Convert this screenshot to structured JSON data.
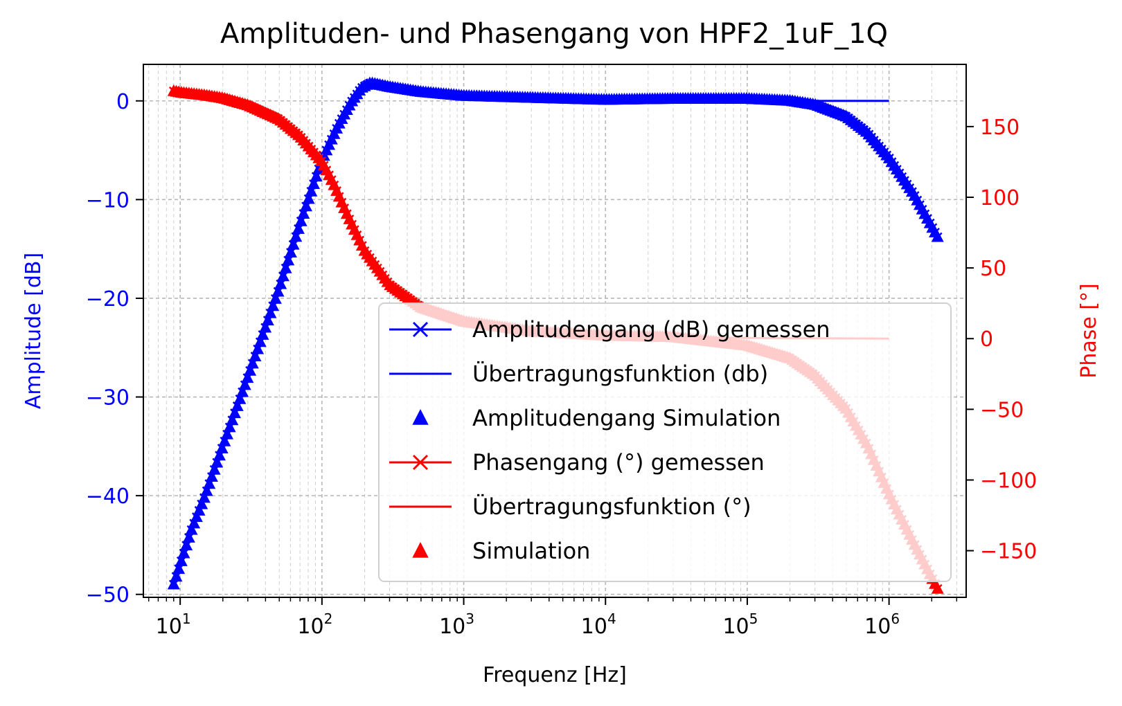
{
  "chart_data": {
    "type": "line",
    "title": "Amplituden- und Phasengang von HPF2_1uF_1Q",
    "xlabel": "Frequenz [Hz]",
    "ylabel": "Amplitude [dB]",
    "ylabel_right": "Phase [°]",
    "x_scale": "log",
    "xlim": [
      5.5,
      3500000
    ],
    "ylim": [
      -50.3,
      3.7
    ],
    "ylim_right": [
      -183,
      194
    ],
    "x_ticks": [
      {
        "value": 10,
        "base": "10",
        "exp": "1"
      },
      {
        "value": 100,
        "base": "10",
        "exp": "2"
      },
      {
        "value": 1000,
        "base": "10",
        "exp": "3"
      },
      {
        "value": 10000,
        "base": "10",
        "exp": "4"
      },
      {
        "value": 100000,
        "base": "10",
        "exp": "5"
      },
      {
        "value": 1000000,
        "base": "10",
        "exp": "6"
      }
    ],
    "y_ticks": [
      {
        "value": 0,
        "label": "0"
      },
      {
        "value": -10,
        "label": "−10"
      },
      {
        "value": -20,
        "label": "−20"
      },
      {
        "value": -30,
        "label": "−30"
      },
      {
        "value": -40,
        "label": "−40"
      },
      {
        "value": -50,
        "label": "−50"
      }
    ],
    "y_ticks_right": [
      {
        "value": 150,
        "label": "150"
      },
      {
        "value": 100,
        "label": "100"
      },
      {
        "value": 50,
        "label": "50"
      },
      {
        "value": 0,
        "label": "0"
      },
      {
        "value": -50,
        "label": "−50"
      },
      {
        "value": -100,
        "label": "−100"
      },
      {
        "value": -150,
        "label": "−150"
      }
    ],
    "grid": true,
    "legend_position": "lower-right",
    "colors": {
      "amplitude": "#0000ff",
      "phase": "#ff0000"
    },
    "series": [
      {
        "name": "Amplitudengang (dB) gemessen",
        "axis": "left",
        "color": "#0000ff",
        "style": "x-markers",
        "x": [
          9,
          10,
          12,
          15,
          20,
          30,
          50,
          70,
          100,
          130,
          160,
          190,
          220,
          300,
          500,
          1000,
          3000,
          10000,
          30000,
          100000,
          200000,
          300000,
          500000,
          700000,
          1000000,
          1500000,
          2200000
        ],
        "y": [
          -49,
          -47,
          -43.5,
          -40,
          -35,
          -28,
          -19,
          -12.5,
          -6,
          -2.5,
          -0.2,
          1.3,
          1.8,
          1.4,
          0.9,
          0.5,
          0.3,
          0.1,
          0.2,
          0.2,
          0,
          -0.4,
          -1.6,
          -3.2,
          -5.8,
          -9.5,
          -13.8
        ]
      },
      {
        "name": "Übertragungsfunktion (db)",
        "axis": "left",
        "color": "#0000ff",
        "style": "line",
        "x": [
          9,
          10,
          12,
          15,
          20,
          30,
          50,
          70,
          100,
          130,
          160,
          190,
          220,
          300,
          500,
          1000,
          3000,
          10000,
          100000,
          1000000
        ],
        "y": [
          -49,
          -47,
          -43.5,
          -40,
          -35,
          -28,
          -19,
          -12.5,
          -6,
          -2.5,
          -0.2,
          1.3,
          1.8,
          1.4,
          0.9,
          0.5,
          0.2,
          0.1,
          0,
          0
        ]
      },
      {
        "name": "Amplitudengang Simulation",
        "axis": "left",
        "color": "#0000ff",
        "style": "triangle-markers",
        "x": [
          9,
          10,
          12,
          15,
          20,
          30,
          50,
          70,
          100,
          130,
          160,
          190,
          220,
          300,
          500,
          1000,
          3000,
          10000,
          30000,
          100000,
          200000,
          300000,
          500000,
          700000,
          1000000,
          1500000,
          2200000
        ],
        "y": [
          -49,
          -47,
          -43.5,
          -40,
          -35,
          -28,
          -19,
          -12.5,
          -6,
          -2.5,
          -0.2,
          1.3,
          1.8,
          1.4,
          0.9,
          0.5,
          0.3,
          0.1,
          0.2,
          0.2,
          0,
          -0.4,
          -1.6,
          -3.2,
          -5.8,
          -9.5,
          -13.8
        ]
      },
      {
        "name": "Phasengang (°) gemessen",
        "axis": "right",
        "color": "#ff0000",
        "style": "x-markers",
        "x": [
          9,
          10,
          15,
          20,
          30,
          50,
          70,
          100,
          120,
          150,
          200,
          300,
          500,
          1000,
          3000,
          10000,
          30000,
          100000,
          200000,
          300000,
          500000,
          700000,
          1000000,
          1500000,
          2200000
        ],
        "y": [
          175,
          174,
          172,
          170,
          165,
          155,
          143,
          125,
          110,
          88,
          62,
          38,
          22,
          12,
          5,
          2,
          1,
          -5,
          -14,
          -26,
          -50,
          -75,
          -110,
          -145,
          -177
        ]
      },
      {
        "name": "Übertragungsfunktion (°)",
        "axis": "right",
        "color": "#ff0000",
        "style": "line",
        "x": [
          9,
          10,
          15,
          20,
          30,
          50,
          70,
          100,
          120,
          150,
          200,
          300,
          500,
          1000,
          3000,
          10000,
          30000,
          100000,
          300000,
          1000000
        ],
        "y": [
          175,
          174,
          172,
          170,
          165,
          155,
          143,
          125,
          110,
          88,
          62,
          38,
          22,
          12,
          5,
          2,
          1,
          0.5,
          0.2,
          0
        ]
      },
      {
        "name": "Simulation",
        "axis": "right",
        "color": "#ff0000",
        "style": "triangle-markers",
        "x": [
          9,
          10,
          15,
          20,
          30,
          50,
          70,
          100,
          120,
          150,
          200,
          300,
          500,
          1000,
          3000,
          10000,
          30000,
          100000,
          200000,
          300000,
          500000,
          700000,
          1000000,
          1500000,
          2200000
        ],
        "y": [
          175,
          174,
          172,
          170,
          165,
          155,
          143,
          125,
          110,
          88,
          62,
          38,
          22,
          12,
          5,
          2,
          1,
          -5,
          -14,
          -26,
          -50,
          -75,
          -110,
          -145,
          -177
        ]
      }
    ]
  }
}
